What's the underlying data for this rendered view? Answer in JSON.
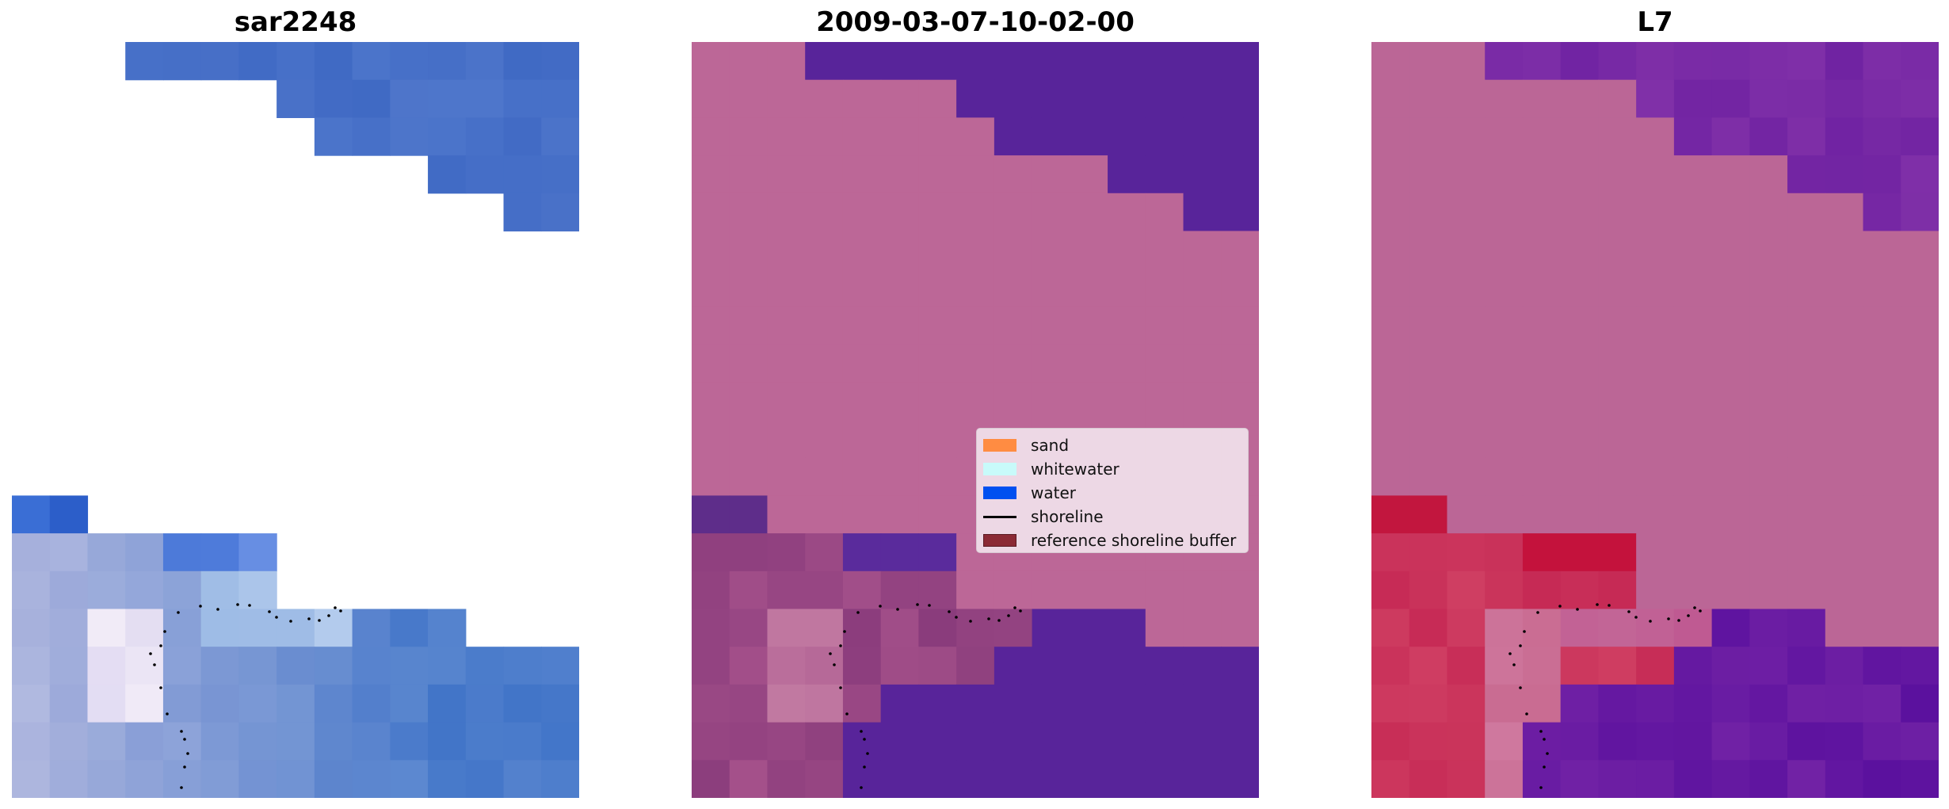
{
  "panels": [
    {
      "title": "sar2248"
    },
    {
      "title": "2009-03-07-10-02-00"
    },
    {
      "title": "L7"
    }
  ],
  "legend": {
    "items": [
      {
        "label": "sand",
        "color": "#ff8c42",
        "kind": "patch"
      },
      {
        "label": "whitewater",
        "color": "#c8fafa",
        "kind": "patch"
      },
      {
        "label": "water",
        "color": "#0050f0",
        "kind": "patch"
      },
      {
        "label": "shoreline",
        "color": "#000000",
        "kind": "line"
      },
      {
        "label": "reference shoreline buffer",
        "color": "#8b2a35",
        "kind": "patch"
      }
    ]
  },
  "colors": {
    "background": "#ffffff",
    "sar_water": "#4a72c8",
    "classified_land": "#bc6797",
    "classified_water": "#58249a",
    "mndwi_land": "#bb6696",
    "mndwi_water": "#6c1e9e",
    "buffer_red": "#c52a50"
  }
}
